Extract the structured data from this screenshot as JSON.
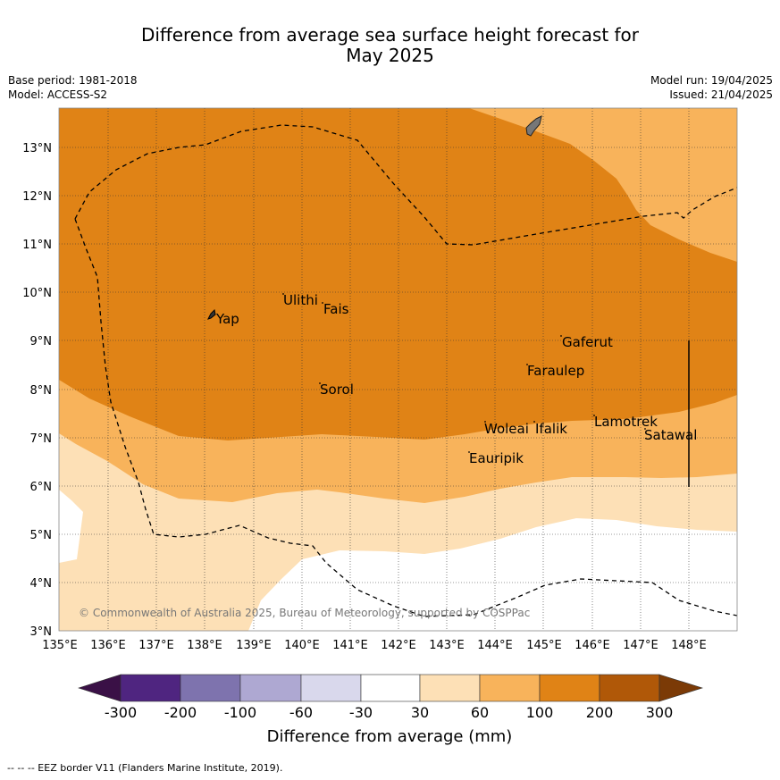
{
  "title_line1": "Difference from average sea surface height forecast for",
  "title_line2": "May 2025",
  "meta": {
    "base_period": "Base period: 1981-2018",
    "model": "Model: ACCESS-S2",
    "model_run": "Model run: 19/04/2025",
    "issued": "Issued: 21/04/2025"
  },
  "map": {
    "lon_labels": [
      "135°E",
      "136°E",
      "137°E",
      "138°E",
      "139°E",
      "140°E",
      "141°E",
      "142°E",
      "143°E",
      "144°E",
      "145°E",
      "146°E",
      "147°E",
      "148°E"
    ],
    "lat_labels": [
      "13°N",
      "12°N",
      "11°N",
      "10°N",
      "9°N",
      "8°N",
      "7°N",
      "6°N",
      "5°N",
      "4°N",
      "3°N"
    ],
    "places": [
      "Yap",
      "Ulithi",
      "Fais",
      "Gaferut",
      "Faraulep",
      "Sorol",
      "Lamotrek",
      "Woleai",
      "Ifalik",
      "Satawal",
      "Eauripik"
    ],
    "copyright": "© Commonwealth of Australia 2025, Bureau of Meteorology, supported by COSPPac"
  },
  "legend": {
    "ticks": [
      "-300",
      "-200",
      "-100",
      "-60",
      "-30",
      "30",
      "60",
      "100",
      "200",
      "300"
    ],
    "colors": [
      "#3a1046",
      "#4f2580",
      "#7e73ae",
      "#aea8d2",
      "#d9d8ec",
      "#ffffff",
      "#fde0b6",
      "#f8b35b",
      "#e08316",
      "#b05808",
      "#7b3a06"
    ],
    "label": "Difference from average (mm)"
  },
  "footer": "--  --  -- EEZ border V11 (Flanders Marine Institute, 2019)."
}
